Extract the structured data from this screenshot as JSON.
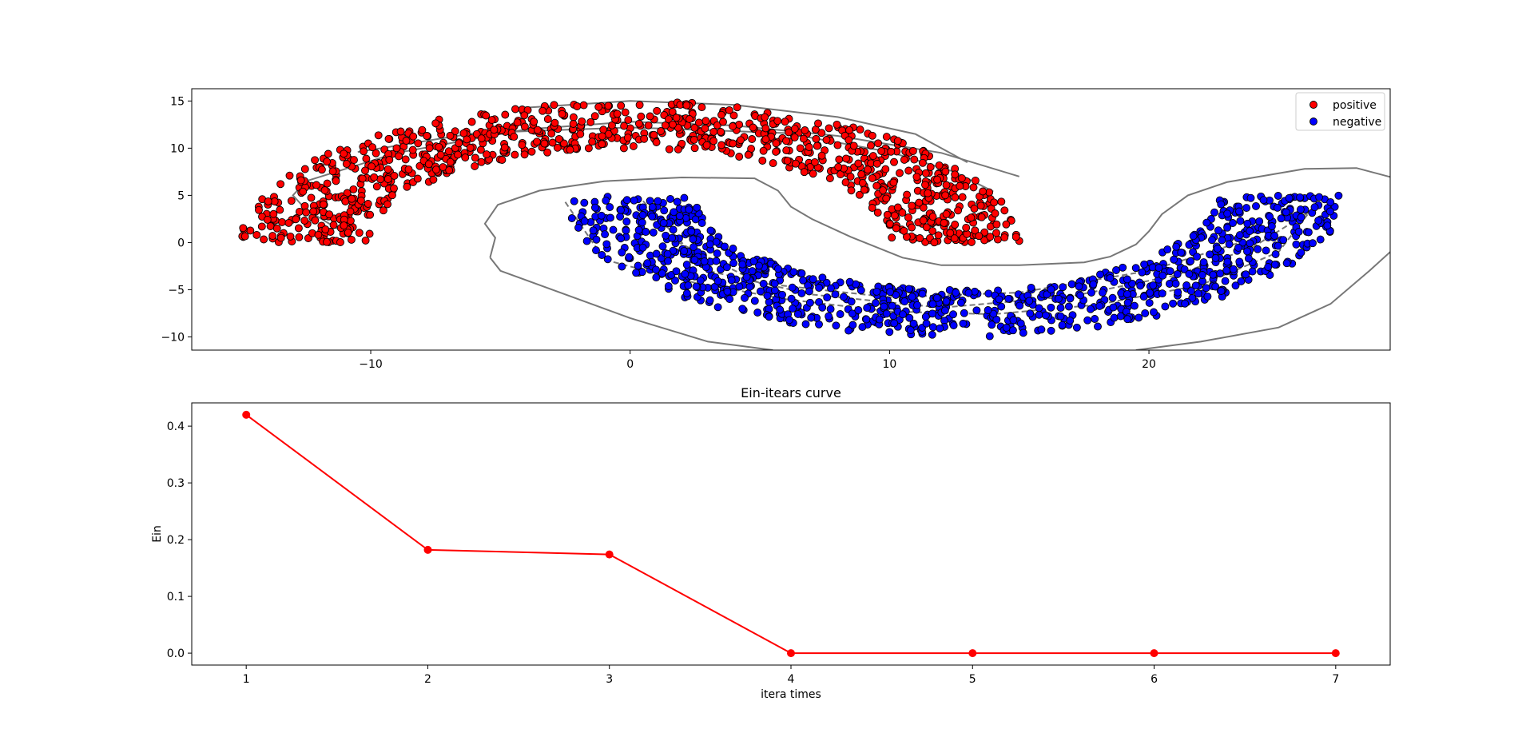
{
  "chart_data": [
    {
      "type": "scatter",
      "title": "",
      "xlabel": "",
      "ylabel": "",
      "xlim": [
        -16.9,
        29.3
      ],
      "ylim": [
        -11.4,
        16.3
      ],
      "xticks": [
        -10,
        0,
        10,
        20
      ],
      "yticks": [
        -10,
        -5,
        0,
        5,
        10,
        15
      ],
      "legend": {
        "placement": "top-right",
        "entries": [
          "positive",
          "negative"
        ]
      },
      "series": [
        {
          "name": "positive",
          "color": "#ff0000",
          "shape": "upper-half-ring",
          "center": [
            0,
            0
          ],
          "inner_radius": 10,
          "outer_radius": 15,
          "points": 1000
        },
        {
          "name": "negative",
          "color": "#0000ff",
          "shape": "lower-half-ring",
          "center": [
            12.5,
            5
          ],
          "inner_radius": 10,
          "outer_radius": 15,
          "points": 1000
        }
      ],
      "decision_boundary": {
        "style": "solid",
        "color": "#777777"
      }
    },
    {
      "type": "line",
      "title": "Ein-itears curve",
      "xlabel": "itera times",
      "ylabel": "Ein",
      "x": [
        1,
        2,
        3,
        4,
        5,
        6,
        7
      ],
      "y": [
        0.42,
        0.182,
        0.174,
        0.0,
        0.0,
        0.0,
        0.0
      ],
      "xlim": [
        0.7,
        7.3
      ],
      "ylim": [
        -0.021,
        0.441
      ],
      "xticks": [
        1,
        2,
        3,
        4,
        5,
        6,
        7
      ],
      "yticks": [
        0.0,
        0.1,
        0.2,
        0.3,
        0.4
      ],
      "color": "#ff0000",
      "marker": "circle"
    }
  ]
}
